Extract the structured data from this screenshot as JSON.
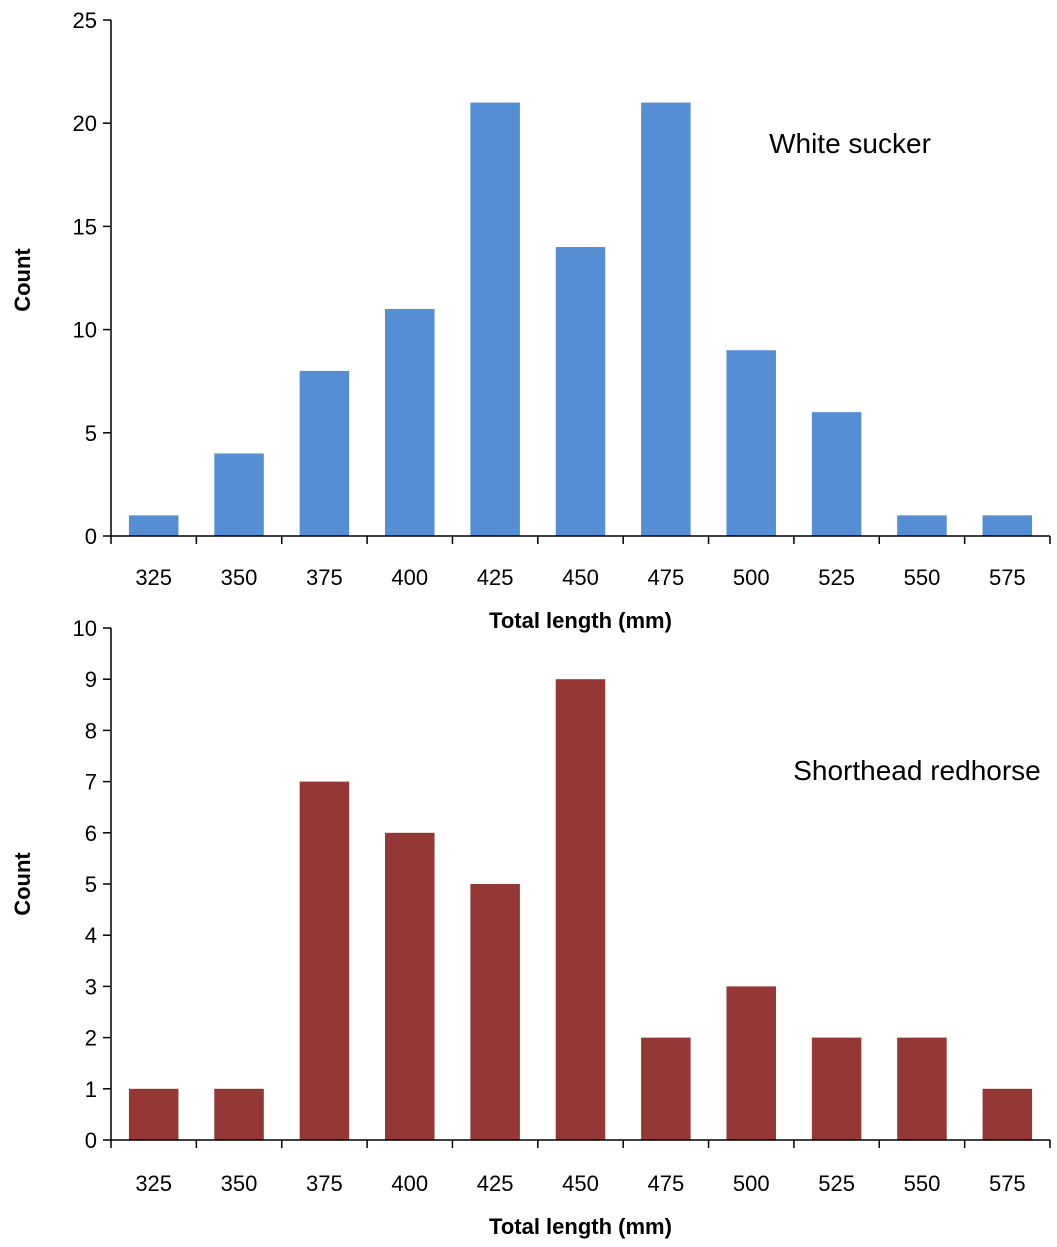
{
  "chart_data": [
    {
      "type": "bar",
      "title": "",
      "annotation": "White sucker",
      "xlabel": "Total length (mm)",
      "ylabel": "Count",
      "categories": [
        "325",
        "350",
        "375",
        "400",
        "425",
        "450",
        "475",
        "500",
        "525",
        "550",
        "575"
      ],
      "values": [
        1,
        4,
        8,
        11,
        21,
        14,
        21,
        9,
        6,
        1,
        1
      ],
      "ylim": [
        0,
        25
      ],
      "yticks": [
        0,
        5,
        10,
        15,
        20,
        25
      ],
      "color": "#558ED5",
      "grid": false,
      "legend": "none"
    },
    {
      "type": "bar",
      "title": "",
      "annotation": "Shorthead redhorse",
      "xlabel": "Total length (mm)",
      "ylabel": "Count",
      "categories": [
        "325",
        "350",
        "375",
        "400",
        "425",
        "450",
        "475",
        "500",
        "525",
        "550",
        "575"
      ],
      "values": [
        1,
        1,
        7,
        6,
        5,
        9,
        2,
        3,
        2,
        2,
        1
      ],
      "ylim": [
        0,
        10
      ],
      "yticks": [
        0,
        1,
        2,
        3,
        4,
        5,
        6,
        7,
        8,
        9,
        10
      ],
      "color": "#953735",
      "grid": false,
      "legend": "none"
    }
  ]
}
